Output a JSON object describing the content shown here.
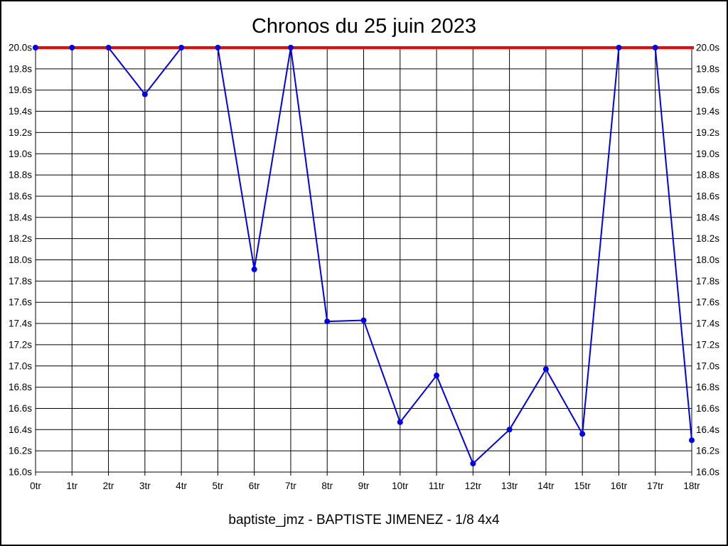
{
  "page": {
    "title": "Chronos du 25 juin 2023",
    "footer": "baptiste_jmz - BAPTISTE JIMENEZ - 1/8 4x4"
  },
  "chart_data": {
    "type": "line",
    "title": "Chronos du 25 juin 2023",
    "footer": "baptiste_jmz - BAPTISTE JIMENEZ - 1/8 4x4",
    "categories": [
      "0tr",
      "1tr",
      "2tr",
      "3tr",
      "4tr",
      "5tr",
      "6tr",
      "7tr",
      "8tr",
      "9tr",
      "10tr",
      "11tr",
      "12tr",
      "13tr",
      "14tr",
      "15tr",
      "16tr",
      "17tr",
      "18tr"
    ],
    "series": [
      {
        "name": "lap-times",
        "color": "#0000ee",
        "marker": "circle",
        "values": [
          20.0,
          20.0,
          20.0,
          19.56,
          20.0,
          20.0,
          17.91,
          20.0,
          17.42,
          17.43,
          16.47,
          16.91,
          16.08,
          16.4,
          16.97,
          16.36,
          20.0,
          20.0,
          16.3
        ]
      }
    ],
    "limit_line": {
      "name": "max-time-line",
      "value": 20.0,
      "color": "#ff0000"
    },
    "xlabel": "",
    "ylabel": "",
    "ylim": [
      16.0,
      20.0
    ],
    "ytick_step": 0.2,
    "ytick_labels": [
      "20.0s",
      "19.8s",
      "19.6s",
      "19.4s",
      "19.2s",
      "19.0s",
      "18.8s",
      "18.6s",
      "18.4s",
      "18.2s",
      "18.0s",
      "17.8s",
      "17.6s",
      "17.4s",
      "17.2s",
      "17.0s",
      "16.8s",
      "16.6s",
      "16.4s",
      "16.2s",
      "16.0s"
    ],
    "grid": true,
    "grid_color": "#000000",
    "background": "#ffffff",
    "legend": "none",
    "y_axis_label_sides": "both"
  }
}
